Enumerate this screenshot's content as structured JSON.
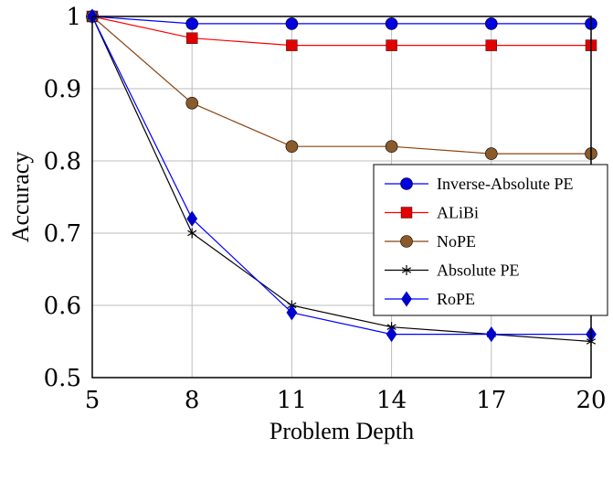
{
  "chart_data": {
    "type": "line",
    "title": "",
    "xlabel": "Problem Depth",
    "ylabel": "Accuracy",
    "x": [
      5,
      8,
      11,
      14,
      17,
      20
    ],
    "x_tick_labels": [
      "5",
      "8",
      "11",
      "14",
      "17",
      "20"
    ],
    "y_ticks": [
      0.5,
      0.6,
      0.7,
      0.8,
      0.9,
      1
    ],
    "y_tick_labels": [
      "0.5",
      "0.6",
      "0.7",
      "0.8",
      "0.9",
      "1"
    ],
    "xlim": [
      5,
      20
    ],
    "ylim": [
      0.5,
      1
    ],
    "grid": true,
    "legend_position": "center-right",
    "series": [
      {
        "name": "Inverse-Absolute PE",
        "color": "#0000ff",
        "marker_color": "#0000e0",
        "marker": "circle",
        "values": [
          1,
          0.99,
          0.99,
          0.99,
          0.99,
          0.99
        ]
      },
      {
        "name": "ALiBi",
        "color": "#ff0000",
        "marker_color": "#e00000",
        "marker": "square",
        "values": [
          1,
          0.97,
          0.96,
          0.96,
          0.96,
          0.96
        ]
      },
      {
        "name": "NoPE",
        "color": "#8b4513",
        "marker_color": "#8b5a2b",
        "marker": "circle",
        "values": [
          1,
          0.88,
          0.82,
          0.82,
          0.81,
          0.81
        ]
      },
      {
        "name": "Absolute PE",
        "color": "#000000",
        "marker_color": "#000000",
        "marker": "star",
        "values": [
          1,
          0.7,
          0.6,
          0.57,
          0.56,
          0.55
        ]
      },
      {
        "name": "RoPE",
        "color": "#0000ff",
        "marker_color": "#0000cc",
        "marker": "diamond",
        "values": [
          1,
          0.72,
          0.59,
          0.56,
          0.56,
          0.56
        ]
      }
    ]
  }
}
